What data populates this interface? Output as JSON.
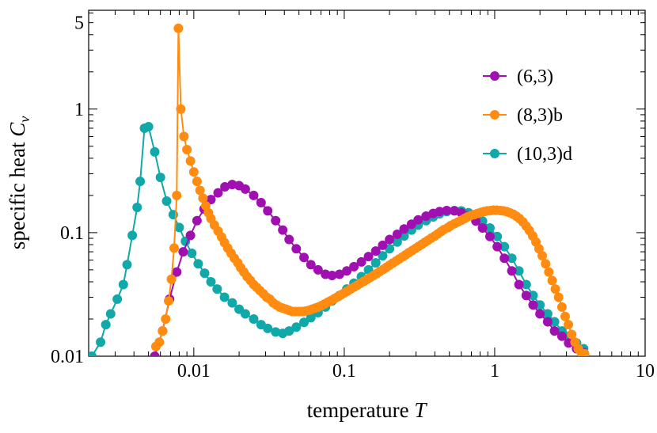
{
  "chart_data": {
    "type": "line",
    "xlabel": "temperature",
    "xlabel_symbol": "T",
    "ylabel": "specific heat",
    "ylabel_symbol": "C",
    "ylabel_subscript": "v",
    "xscale": "log",
    "yscale": "log",
    "xlim": [
      0.002,
      10
    ],
    "ylim": [
      0.01,
      6.3
    ],
    "x_ticks": [
      0.01,
      0.1,
      1,
      10
    ],
    "x_tick_labels": [
      "0.01",
      "0.1",
      "1",
      "10"
    ],
    "y_ticks": [
      0.01,
      0.1,
      1,
      5
    ],
    "y_tick_labels": [
      "0.01",
      "0.1",
      "1",
      "5"
    ],
    "legend_position": "top-right",
    "series": [
      {
        "name": "(6,3)",
        "color": "#a010b0",
        "x": [
          0.0055,
          0.0062,
          0.0069,
          0.0077,
          0.0085,
          0.0095,
          0.0105,
          0.0117,
          0.013,
          0.0145,
          0.0161,
          0.018,
          0.02,
          0.022,
          0.025,
          0.028,
          0.031,
          0.035,
          0.039,
          0.043,
          0.048,
          0.054,
          0.06,
          0.067,
          0.075,
          0.083,
          0.093,
          0.104,
          0.116,
          0.13,
          0.145,
          0.162,
          0.18,
          0.2,
          0.225,
          0.25,
          0.28,
          0.31,
          0.35,
          0.39,
          0.43,
          0.48,
          0.54,
          0.6,
          0.67,
          0.75,
          0.83,
          0.93,
          1.04,
          1.16,
          1.3,
          1.45,
          1.62,
          1.8,
          2.0,
          2.25,
          2.5,
          2.8,
          3.1,
          3.5,
          3.9
        ],
        "y": [
          0.01,
          0.016,
          0.029,
          0.048,
          0.07,
          0.095,
          0.125,
          0.155,
          0.185,
          0.21,
          0.235,
          0.245,
          0.24,
          0.225,
          0.2,
          0.175,
          0.15,
          0.125,
          0.105,
          0.088,
          0.074,
          0.063,
          0.055,
          0.05,
          0.046,
          0.045,
          0.046,
          0.049,
          0.053,
          0.058,
          0.064,
          0.071,
          0.079,
          0.088,
          0.097,
          0.107,
          0.117,
          0.127,
          0.136,
          0.143,
          0.148,
          0.151,
          0.15,
          0.145,
          0.137,
          0.124,
          0.109,
          0.093,
          0.077,
          0.062,
          0.049,
          0.038,
          0.031,
          0.026,
          0.022,
          0.019,
          0.016,
          0.0145,
          0.0128,
          0.0115,
          0.0107
        ]
      },
      {
        "name": "(8,3)b",
        "color": "#ff8c10",
        "x": [
          0.0056,
          0.0059,
          0.0062,
          0.0065,
          0.0068,
          0.0071,
          0.0074,
          0.0077,
          0.0079,
          0.0082,
          0.0086,
          0.009,
          0.0095,
          0.01,
          0.0105,
          0.011,
          0.0115,
          0.012,
          0.0125,
          0.013,
          0.0137,
          0.0145,
          0.0153,
          0.016,
          0.0168,
          0.0177,
          0.0186,
          0.0196,
          0.0205,
          0.0215,
          0.0226,
          0.0238,
          0.025,
          0.0262,
          0.0275,
          0.029,
          0.0305,
          0.032,
          0.0337,
          0.0354,
          0.0372,
          0.039,
          0.041,
          0.043,
          0.0452,
          0.0475,
          0.05,
          0.0525,
          0.0552,
          0.058,
          0.061,
          0.064,
          0.0672,
          0.0706,
          0.0742,
          0.078,
          0.082,
          0.0862,
          0.0906,
          0.0952,
          0.1,
          0.105,
          0.11,
          0.116,
          0.122,
          0.128,
          0.135,
          0.142,
          0.149,
          0.157,
          0.165,
          0.173,
          0.182,
          0.191,
          0.2,
          0.21,
          0.221,
          0.232,
          0.244,
          0.256,
          0.269,
          0.283,
          0.297,
          0.312,
          0.328,
          0.344,
          0.362,
          0.38,
          0.4,
          0.42,
          0.44,
          0.46,
          0.49,
          0.51,
          0.54,
          0.57,
          0.6,
          0.63,
          0.66,
          0.69,
          0.73,
          0.77,
          0.81,
          0.85,
          0.89,
          0.94,
          0.98,
          1.03,
          1.09,
          1.14,
          1.2,
          1.26,
          1.33,
          1.39,
          1.46,
          1.54,
          1.62,
          1.7,
          1.79,
          1.88,
          1.97,
          2.07,
          2.18,
          2.29,
          2.41,
          2.53,
          2.66,
          2.8,
          2.94,
          3.09,
          3.25,
          3.42,
          3.59,
          3.77,
          3.96
        ],
        "y": [
          0.012,
          0.013,
          0.016,
          0.02,
          0.028,
          0.042,
          0.075,
          0.2,
          4.5,
          1.0,
          0.6,
          0.47,
          0.38,
          0.31,
          0.26,
          0.22,
          0.19,
          0.165,
          0.145,
          0.13,
          0.115,
          0.103,
          0.092,
          0.083,
          0.075,
          0.068,
          0.062,
          0.057,
          0.052,
          0.048,
          0.044,
          0.041,
          0.038,
          0.036,
          0.034,
          0.032,
          0.03,
          0.029,
          0.027,
          0.026,
          0.025,
          0.0245,
          0.024,
          0.0235,
          0.023,
          0.023,
          0.023,
          0.023,
          0.0232,
          0.0235,
          0.024,
          0.0245,
          0.025,
          0.0257,
          0.0265,
          0.0274,
          0.0283,
          0.0293,
          0.0303,
          0.0314,
          0.0325,
          0.0337,
          0.0349,
          0.0362,
          0.0375,
          0.0389,
          0.0404,
          0.0419,
          0.0435,
          0.0451,
          0.0468,
          0.0486,
          0.0505,
          0.0525,
          0.0545,
          0.0567,
          0.0589,
          0.0613,
          0.0637,
          0.0662,
          0.0689,
          0.0716,
          0.0744,
          0.0774,
          0.0805,
          0.0837,
          0.0871,
          0.0906,
          0.094,
          0.098,
          0.102,
          0.106,
          0.11,
          0.114,
          0.118,
          0.122,
          0.126,
          0.13,
          0.134,
          0.137,
          0.14,
          0.143,
          0.146,
          0.148,
          0.15,
          0.151,
          0.152,
          0.152,
          0.151,
          0.15,
          0.148,
          0.145,
          0.141,
          0.136,
          0.13,
          0.122,
          0.113,
          0.104,
          0.094,
          0.084,
          0.074,
          0.065,
          0.056,
          0.048,
          0.041,
          0.035,
          0.03,
          0.025,
          0.021,
          0.018,
          0.015,
          0.013,
          0.0115,
          0.0106,
          0.0105
        ]
      },
      {
        "name": "(10,3)d",
        "color": "#10a8a8",
        "x": [
          0.0021,
          0.0024,
          0.0026,
          0.0028,
          0.0031,
          0.0034,
          0.0036,
          0.0039,
          0.0042,
          0.0044,
          0.0047,
          0.005,
          0.0055,
          0.006,
          0.0066,
          0.0073,
          0.008,
          0.0088,
          0.0097,
          0.0107,
          0.0118,
          0.013,
          0.0143,
          0.016,
          0.018,
          0.02,
          0.022,
          0.025,
          0.028,
          0.031,
          0.035,
          0.039,
          0.043,
          0.048,
          0.054,
          0.06,
          0.067,
          0.075,
          0.083,
          0.093,
          0.104,
          0.116,
          0.13,
          0.145,
          0.162,
          0.18,
          0.2,
          0.225,
          0.25,
          0.28,
          0.31,
          0.35,
          0.39,
          0.43,
          0.48,
          0.54,
          0.6,
          0.67,
          0.75,
          0.83,
          0.93,
          1.04,
          1.16,
          1.3,
          1.45,
          1.62,
          1.8,
          2.0,
          2.25,
          2.5,
          2.8,
          3.1,
          3.5,
          3.9
        ],
        "y": [
          0.01,
          0.013,
          0.018,
          0.022,
          0.029,
          0.038,
          0.055,
          0.095,
          0.16,
          0.26,
          0.7,
          0.72,
          0.45,
          0.28,
          0.18,
          0.14,
          0.11,
          0.085,
          0.068,
          0.056,
          0.047,
          0.04,
          0.035,
          0.03,
          0.027,
          0.024,
          0.022,
          0.02,
          0.018,
          0.0168,
          0.0157,
          0.0153,
          0.016,
          0.0172,
          0.0188,
          0.0205,
          0.0225,
          0.025,
          0.028,
          0.031,
          0.035,
          0.039,
          0.044,
          0.05,
          0.057,
          0.065,
          0.074,
          0.084,
          0.094,
          0.105,
          0.115,
          0.125,
          0.134,
          0.142,
          0.148,
          0.151,
          0.15,
          0.145,
          0.137,
          0.124,
          0.109,
          0.093,
          0.077,
          0.062,
          0.049,
          0.038,
          0.031,
          0.026,
          0.022,
          0.019,
          0.016,
          0.0145,
          0.0128,
          0.0115
        ]
      }
    ]
  }
}
